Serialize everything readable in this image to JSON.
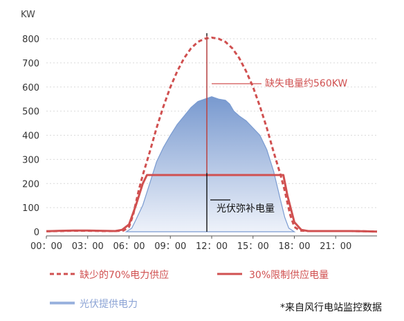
{
  "chart_data": {
    "type": "area",
    "unit_label": "KW",
    "ylim": [
      0,
      800
    ],
    "y_ticks": [
      "0",
      "100",
      "200",
      "300",
      "400",
      "500",
      "600",
      "700",
      "800"
    ],
    "x_ticks": [
      "00：00",
      "03：00",
      "06：00",
      "09：00",
      "12：00",
      "15：00",
      "18：00",
      "21：00"
    ],
    "grid": "horizontal dashed",
    "series": [
      {
        "name": "缺少的70%电力供应",
        "style": "dashed",
        "color": "#d05050",
        "x": [
          0,
          1,
          2,
          3,
          4,
          5,
          5.6,
          6,
          6.3,
          6.7,
          7,
          7.5,
          8,
          8.5,
          9,
          9.5,
          10,
          10.5,
          11,
          11.5,
          12,
          12.5,
          13,
          13.5,
          14,
          14.5,
          15,
          15.5,
          16,
          16.5,
          17,
          17.3,
          17.7,
          18,
          18.4,
          19,
          20,
          21,
          22,
          23,
          24
        ],
        "y": [
          2,
          3,
          4,
          4,
          3,
          3,
          5,
          20,
          70,
          170,
          235,
          330,
          430,
          520,
          600,
          665,
          720,
          760,
          787,
          800,
          805,
          800,
          787,
          760,
          720,
          665,
          600,
          520,
          430,
          330,
          235,
          170,
          70,
          20,
          5,
          3,
          3,
          3,
          3,
          2,
          1
        ]
      },
      {
        "name": "30%限制供应电量",
        "style": "solid",
        "color": "#d05050",
        "x": [
          0,
          1,
          2,
          3,
          4,
          5,
          5.5,
          6,
          6.5,
          7,
          7.3,
          7.5,
          8,
          10,
          12,
          14,
          16,
          16.5,
          17,
          17.2,
          17.5,
          18,
          18.5,
          19,
          20,
          21,
          22,
          23,
          24
        ],
        "y": [
          2,
          4,
          5,
          5,
          4,
          3,
          8,
          30,
          110,
          200,
          235,
          235,
          235,
          235,
          235,
          235,
          235,
          235,
          235,
          235,
          150,
          40,
          8,
          3,
          3,
          3,
          3,
          2,
          1
        ]
      },
      {
        "name": "光伏提供电力",
        "style": "area",
        "color": "#7a9bd1",
        "x": [
          5.8,
          6.2,
          6.5,
          7,
          7.5,
          8,
          8.5,
          9,
          9.5,
          10,
          10.5,
          11,
          11.5,
          12,
          12.5,
          13,
          13.3,
          13.6,
          14,
          14.5,
          15,
          15.5,
          16,
          16.5,
          17,
          17.3,
          17.6,
          18
        ],
        "y": [
          0,
          15,
          50,
          110,
          200,
          290,
          350,
          400,
          445,
          480,
          515,
          540,
          550,
          560,
          550,
          545,
          530,
          500,
          480,
          460,
          430,
          400,
          340,
          250,
          130,
          60,
          15,
          0
        ]
      }
    ],
    "annotations": [
      {
        "text": "缺失电量约560KW",
        "color": "#d05050"
      },
      {
        "text": "光伏弥补电量",
        "color": "#111111"
      }
    ],
    "legend_placement": "bottom",
    "footnote": "*来自风行电站监控数据"
  },
  "legend": {
    "item1": "缺少的70%电力供应",
    "item2": "30%限制供应电量",
    "item3": "光伏提供电力"
  }
}
